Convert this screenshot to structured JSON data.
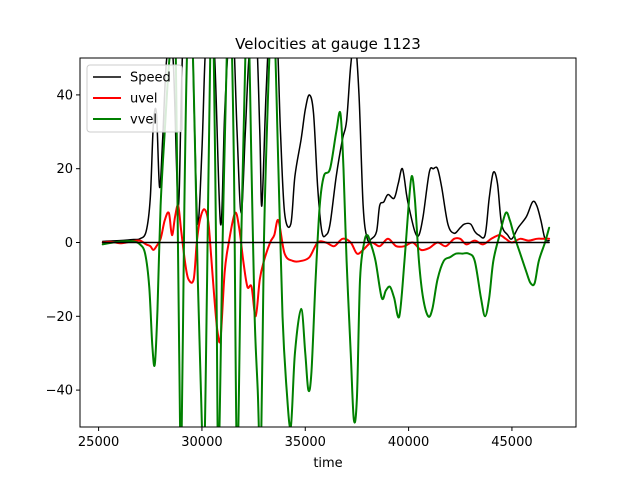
{
  "chart_data": {
    "type": "line",
    "title": "Velocities at gauge 1123",
    "xlabel": "time",
    "ylabel": "",
    "xlim": [
      24100,
      48100
    ],
    "ylim": [
      -50,
      50
    ],
    "xticks": [
      25000,
      30000,
      35000,
      40000,
      45000
    ],
    "yticks": [
      -40,
      -20,
      0,
      20,
      40
    ],
    "legend_position": "top-left",
    "series": [
      {
        "name": "Speed",
        "color": "#000000",
        "width": 1.5,
        "points": [
          [
            25200,
            0.3
          ],
          [
            26000,
            0.5
          ],
          [
            26700,
            0.8
          ],
          [
            27000,
            1
          ],
          [
            27300,
            3
          ],
          [
            27500,
            12
          ],
          [
            27650,
            32
          ],
          [
            27800,
            35
          ],
          [
            27950,
            15
          ],
          [
            28100,
            28
          ],
          [
            28300,
            50
          ],
          [
            28600,
            50
          ],
          [
            28850,
            10
          ],
          [
            29000,
            40
          ],
          [
            29100,
            55
          ],
          [
            29300,
            52
          ],
          [
            29500,
            60
          ],
          [
            29650,
            30
          ],
          [
            29800,
            5
          ],
          [
            30000,
            25
          ],
          [
            30150,
            50
          ],
          [
            30300,
            60
          ],
          [
            30600,
            52
          ],
          [
            30900,
            5
          ],
          [
            31100,
            35
          ],
          [
            31300,
            55
          ],
          [
            31500,
            60
          ],
          [
            31700,
            30
          ],
          [
            31900,
            8
          ],
          [
            32100,
            30
          ],
          [
            32300,
            52
          ],
          [
            32600,
            60
          ],
          [
            32800,
            30
          ],
          [
            32900,
            10
          ],
          [
            33100,
            40
          ],
          [
            33300,
            60
          ],
          [
            33600,
            60
          ],
          [
            33800,
            30
          ],
          [
            34000,
            8
          ],
          [
            34300,
            5
          ],
          [
            34500,
            18
          ],
          [
            34800,
            28
          ],
          [
            35000,
            36
          ],
          [
            35200,
            40
          ],
          [
            35400,
            35
          ],
          [
            35600,
            15
          ],
          [
            35800,
            3
          ],
          [
            36000,
            2
          ],
          [
            36200,
            5
          ],
          [
            36500,
            18
          ],
          [
            36800,
            28
          ],
          [
            37000,
            33
          ],
          [
            37200,
            48
          ],
          [
            37400,
            55
          ],
          [
            37600,
            40
          ],
          [
            37800,
            10
          ],
          [
            38000,
            1
          ],
          [
            38200,
            1
          ],
          [
            38450,
            3
          ],
          [
            38600,
            10
          ],
          [
            38800,
            11
          ],
          [
            39000,
            13
          ],
          [
            39300,
            12
          ],
          [
            39500,
            16
          ],
          [
            39700,
            20
          ],
          [
            39900,
            13
          ],
          [
            40000,
            10
          ],
          [
            40300,
            3
          ],
          [
            40500,
            2
          ],
          [
            40700,
            7
          ],
          [
            41000,
            19
          ],
          [
            41200,
            20
          ],
          [
            41400,
            20
          ],
          [
            41600,
            15
          ],
          [
            41900,
            5
          ],
          [
            42200,
            2.5
          ],
          [
            42500,
            4
          ],
          [
            42700,
            5
          ],
          [
            43000,
            5
          ],
          [
            43200,
            3
          ],
          [
            43400,
            2
          ],
          [
            43700,
            2
          ],
          [
            43900,
            12
          ],
          [
            44100,
            19
          ],
          [
            44300,
            16
          ],
          [
            44500,
            5
          ],
          [
            44800,
            2
          ],
          [
            45000,
            1
          ],
          [
            45300,
            4
          ],
          [
            45700,
            7
          ],
          [
            46000,
            11
          ],
          [
            46200,
            10
          ],
          [
            46400,
            6
          ],
          [
            46600,
            1
          ],
          [
            46800,
            0.5
          ]
        ]
      },
      {
        "name": "uvel",
        "color": "#ff0000",
        "width": 2,
        "points": [
          [
            25200,
            0
          ],
          [
            25600,
            0.2
          ],
          [
            26100,
            -0.2
          ],
          [
            26600,
            0.3
          ],
          [
            27000,
            0.5
          ],
          [
            27300,
            -0.5
          ],
          [
            27500,
            -1
          ],
          [
            27650,
            -2
          ],
          [
            27800,
            -1
          ],
          [
            28000,
            1
          ],
          [
            28200,
            6
          ],
          [
            28400,
            8
          ],
          [
            28550,
            2
          ],
          [
            28700,
            7
          ],
          [
            28850,
            10
          ],
          [
            29000,
            3
          ],
          [
            29200,
            -6
          ],
          [
            29350,
            -10
          ],
          [
            29600,
            -10
          ],
          [
            29750,
            0
          ],
          [
            29900,
            6
          ],
          [
            30100,
            9
          ],
          [
            30300,
            6
          ],
          [
            30450,
            -4
          ],
          [
            30600,
            -15
          ],
          [
            30750,
            -24
          ],
          [
            30900,
            -26
          ],
          [
            31100,
            -8
          ],
          [
            31300,
            0
          ],
          [
            31600,
            8
          ],
          [
            31800,
            4
          ],
          [
            32000,
            -5
          ],
          [
            32200,
            -12
          ],
          [
            32400,
            -12
          ],
          [
            32600,
            -20
          ],
          [
            32800,
            -10
          ],
          [
            33000,
            -5
          ],
          [
            33300,
            0
          ],
          [
            33500,
            2
          ],
          [
            33700,
            6
          ],
          [
            34000,
            -3
          ],
          [
            34400,
            -5
          ],
          [
            34800,
            -5
          ],
          [
            35200,
            -4
          ],
          [
            35600,
            0
          ],
          [
            36000,
            0
          ],
          [
            36400,
            -1
          ],
          [
            36800,
            1
          ],
          [
            37200,
            0
          ],
          [
            37500,
            -3
          ],
          [
            37800,
            -2
          ],
          [
            38200,
            0
          ],
          [
            38600,
            -1
          ],
          [
            39000,
            1
          ],
          [
            39400,
            -1
          ],
          [
            39800,
            -1
          ],
          [
            40200,
            0
          ],
          [
            40600,
            -2
          ],
          [
            41000,
            -1.5
          ],
          [
            41400,
            0
          ],
          [
            41800,
            -1
          ],
          [
            42200,
            1
          ],
          [
            42500,
            1
          ],
          [
            42800,
            -0.5
          ],
          [
            43200,
            0.5
          ],
          [
            43600,
            -0.5
          ],
          [
            44000,
            1
          ],
          [
            44400,
            2
          ],
          [
            44700,
            1
          ],
          [
            45000,
            0
          ],
          [
            45400,
            1
          ],
          [
            45800,
            0.5
          ],
          [
            46200,
            1
          ],
          [
            46500,
            1
          ],
          [
            46800,
            1
          ]
        ]
      },
      {
        "name": "vvel",
        "color": "#008000",
        "width": 2,
        "points": [
          [
            25200,
            -0.5
          ],
          [
            25700,
            0
          ],
          [
            26200,
            0.3
          ],
          [
            26700,
            0.3
          ],
          [
            27000,
            -0.5
          ],
          [
            27250,
            -3
          ],
          [
            27450,
            -12
          ],
          [
            27600,
            -28
          ],
          [
            27720,
            -33
          ],
          [
            27850,
            -18
          ],
          [
            28000,
            10
          ],
          [
            28200,
            30
          ],
          [
            28400,
            48
          ],
          [
            28550,
            55
          ],
          [
            28700,
            60
          ],
          [
            28800,
            20
          ],
          [
            28900,
            -30
          ],
          [
            29000,
            -60
          ],
          [
            29150,
            10
          ],
          [
            29300,
            55
          ],
          [
            29500,
            60
          ],
          [
            29650,
            30
          ],
          [
            29800,
            -10
          ],
          [
            29950,
            -40
          ],
          [
            30100,
            -60
          ],
          [
            30250,
            -10
          ],
          [
            30400,
            50
          ],
          [
            30550,
            60
          ],
          [
            30700,
            -10
          ],
          [
            30800,
            -60
          ],
          [
            31000,
            0
          ],
          [
            31200,
            50
          ],
          [
            31400,
            60
          ],
          [
            31550,
            20
          ],
          [
            31700,
            -60
          ],
          [
            31900,
            0
          ],
          [
            32100,
            50
          ],
          [
            32250,
            60
          ],
          [
            32400,
            20
          ],
          [
            32550,
            -20
          ],
          [
            32700,
            -40
          ],
          [
            32850,
            -60
          ],
          [
            33000,
            0
          ],
          [
            33200,
            40
          ],
          [
            33350,
            60
          ],
          [
            33500,
            60
          ],
          [
            33700,
            20
          ],
          [
            33900,
            -20
          ],
          [
            34100,
            -40
          ],
          [
            34300,
            -50
          ],
          [
            34500,
            -30
          ],
          [
            34800,
            -18
          ],
          [
            35000,
            -30
          ],
          [
            35150,
            -40
          ],
          [
            35300,
            -35
          ],
          [
            35500,
            -10
          ],
          [
            35700,
            10
          ],
          [
            35900,
            18
          ],
          [
            36200,
            20
          ],
          [
            36500,
            30
          ],
          [
            36700,
            35
          ],
          [
            36850,
            20
          ],
          [
            37000,
            -5
          ],
          [
            37200,
            -30
          ],
          [
            37350,
            -48
          ],
          [
            37500,
            -42
          ],
          [
            37650,
            -10
          ],
          [
            37850,
            0
          ],
          [
            38000,
            2
          ],
          [
            38150,
            0
          ],
          [
            38400,
            -5
          ],
          [
            38700,
            -15
          ],
          [
            38900,
            -13
          ],
          [
            39100,
            -12
          ],
          [
            39300,
            -15
          ],
          [
            39550,
            -20
          ],
          [
            39800,
            -5
          ],
          [
            40000,
            10
          ],
          [
            40150,
            18
          ],
          [
            40300,
            12
          ],
          [
            40500,
            -5
          ],
          [
            40700,
            -15
          ],
          [
            40950,
            -20
          ],
          [
            41150,
            -18
          ],
          [
            41400,
            -10
          ],
          [
            41700,
            -5
          ],
          [
            42000,
            -4
          ],
          [
            42300,
            -3
          ],
          [
            42600,
            -3
          ],
          [
            42900,
            -3
          ],
          [
            43200,
            -5
          ],
          [
            43500,
            -15
          ],
          [
            43700,
            -20
          ],
          [
            43900,
            -15
          ],
          [
            44100,
            -5
          ],
          [
            44400,
            2
          ],
          [
            44700,
            8
          ],
          [
            44900,
            6
          ],
          [
            45100,
            2
          ],
          [
            45400,
            -3
          ],
          [
            45700,
            -8
          ],
          [
            45900,
            -11
          ],
          [
            46100,
            -11
          ],
          [
            46300,
            -5
          ],
          [
            46600,
            0
          ],
          [
            46800,
            4
          ]
        ]
      },
      {
        "name": "",
        "color": "#000000",
        "width": 1.5,
        "points": [
          [
            25200,
            0
          ],
          [
            46800,
            0
          ]
        ]
      }
    ]
  }
}
